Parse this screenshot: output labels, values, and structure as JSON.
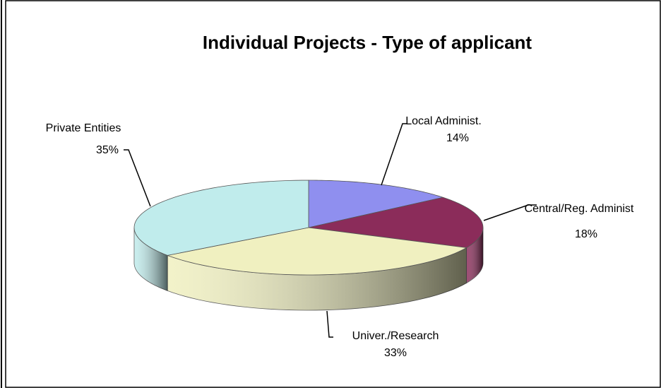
{
  "chart_data": {
    "type": "pie3d",
    "title": "Individual Projects - Type of applicant",
    "categories": [
      "Local Administ.",
      "Central/Reg. Administ",
      "Univer./Research",
      "Private Entities"
    ],
    "values": [
      14,
      18,
      33,
      35
    ],
    "value_labels": [
      "14%",
      "18%",
      "33%",
      "35%"
    ],
    "colors": [
      "#8f8fef",
      "#8b2c5a",
      "#f0f0c0",
      "#c0ecec"
    ]
  }
}
